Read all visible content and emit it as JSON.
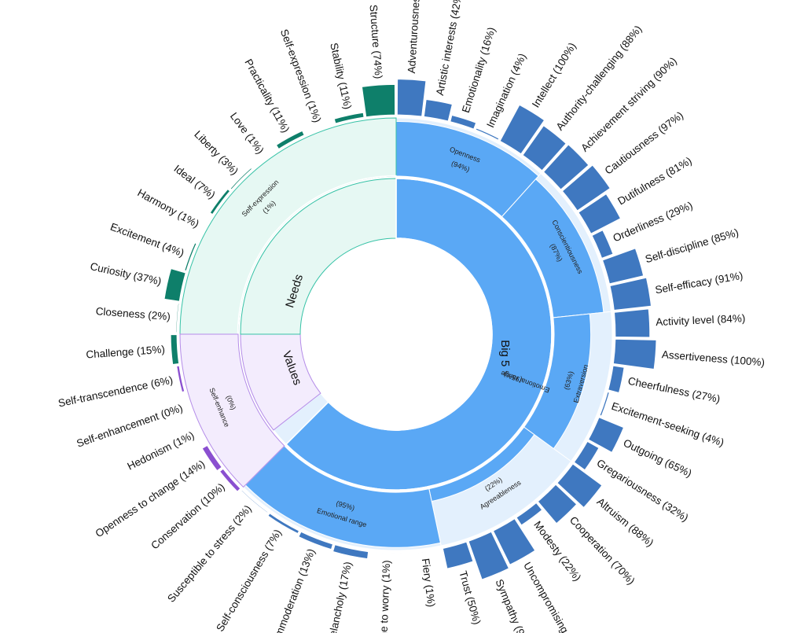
{
  "chart_data": {
    "type": "sunburst",
    "title": "",
    "categories": [
      {
        "name": "Big 5",
        "percent": null,
        "color": "#5aa8f5"
      },
      {
        "name": "Needs",
        "percent": null,
        "color": "#e6f8f3"
      },
      {
        "name": "Values",
        "percent": null,
        "color": "#f3ecfd"
      }
    ],
    "middle_ring": [
      {
        "name": "Openness",
        "percent": 94,
        "group": "Big 5"
      },
      {
        "name": "Conscientiousness",
        "percent": 87,
        "group": "Big 5"
      },
      {
        "name": "Extraversion",
        "percent": 63,
        "group": "Big 5"
      },
      {
        "name": "Agreeableness",
        "percent": 22,
        "group": "Big 5"
      },
      {
        "name": "Emotional range",
        "percent": 95,
        "group": "Big 5"
      },
      {
        "name": "Self-expression",
        "percent": 1,
        "group": "Needs"
      },
      {
        "name": "Self-enhance",
        "percent": 0,
        "group": "Values"
      }
    ],
    "inner_big5": {
      "name": "Emotional range",
      "percent": 95
    },
    "facets": [
      {
        "name": "Adventurousness",
        "percent": 87,
        "parent": "Openness"
      },
      {
        "name": "Artistic interests",
        "percent": 42,
        "parent": "Openness"
      },
      {
        "name": "Emotionality",
        "percent": 16,
        "parent": "Openness"
      },
      {
        "name": "Imagination",
        "percent": 4,
        "parent": "Openness"
      },
      {
        "name": "Intellect",
        "percent": 100,
        "parent": "Openness"
      },
      {
        "name": "Authority-challenging",
        "percent": 88,
        "parent": "Openness"
      },
      {
        "name": "Achievement striving",
        "percent": 90,
        "parent": "Conscientiousness"
      },
      {
        "name": "Cautiousness",
        "percent": 97,
        "parent": "Conscientiousness"
      },
      {
        "name": "Dutifulness",
        "percent": 81,
        "parent": "Conscientiousness"
      },
      {
        "name": "Orderliness",
        "percent": 29,
        "parent": "Conscientiousness"
      },
      {
        "name": "Self-discipline",
        "percent": 85,
        "parent": "Conscientiousness"
      },
      {
        "name": "Self-efficacy",
        "percent": 91,
        "parent": "Conscientiousness"
      },
      {
        "name": "Activity level",
        "percent": 84,
        "parent": "Extraversion"
      },
      {
        "name": "Assertiveness",
        "percent": 100,
        "parent": "Extraversion"
      },
      {
        "name": "Cheerfulness",
        "percent": 27,
        "parent": "Extraversion"
      },
      {
        "name": "Excitement-seeking",
        "percent": 4,
        "parent": "Extraversion"
      },
      {
        "name": "Outgoing",
        "percent": 65,
        "parent": "Extraversion"
      },
      {
        "name": "Gregariousness",
        "percent": 32,
        "parent": "Extraversion"
      },
      {
        "name": "Altruism",
        "percent": 88,
        "parent": "Agreeableness"
      },
      {
        "name": "Cooperation",
        "percent": 70,
        "parent": "Agreeableness"
      },
      {
        "name": "Modesty",
        "percent": 22,
        "parent": "Agreeableness"
      },
      {
        "name": "Uncompromising",
        "percent": 92,
        "parent": "Agreeableness"
      },
      {
        "name": "Sympathy",
        "percent": 99,
        "parent": "Agreeableness"
      },
      {
        "name": "Trust",
        "percent": 50,
        "parent": "Agreeableness"
      },
      {
        "name": "Fiery",
        "percent": 1,
        "parent": "Emotional range"
      },
      {
        "name": "Prone to worry",
        "percent": 1,
        "parent": "Emotional range"
      },
      {
        "name": "Melancholy",
        "percent": 17,
        "parent": "Emotional range"
      },
      {
        "name": "Immoderation",
        "percent": 13,
        "parent": "Emotional range"
      },
      {
        "name": "Self-consciousness",
        "percent": 7,
        "parent": "Emotional range"
      },
      {
        "name": "Susceptible to stress",
        "percent": 2,
        "parent": "Emotional range"
      },
      {
        "name": "Conservation",
        "percent": 10,
        "parent": "Values"
      },
      {
        "name": "Openness to change",
        "percent": 14,
        "parent": "Values"
      },
      {
        "name": "Hedonism",
        "percent": 1,
        "parent": "Values"
      },
      {
        "name": "Self-enhancement",
        "percent": 0,
        "parent": "Values"
      },
      {
        "name": "Self-transcendence",
        "percent": 6,
        "parent": "Values"
      },
      {
        "name": "Challenge",
        "percent": 15,
        "parent": "Needs"
      },
      {
        "name": "Closeness",
        "percent": 2,
        "parent": "Needs"
      },
      {
        "name": "Curiosity",
        "percent": 37,
        "parent": "Needs"
      },
      {
        "name": "Excitement",
        "percent": 4,
        "parent": "Needs"
      },
      {
        "name": "Harmony",
        "percent": 1,
        "parent": "Needs"
      },
      {
        "name": "Ideal",
        "percent": 7,
        "parent": "Needs"
      },
      {
        "name": "Liberty",
        "percent": 3,
        "parent": "Needs"
      },
      {
        "name": "Love",
        "percent": 1,
        "parent": "Needs"
      },
      {
        "name": "Practicality",
        "percent": 11,
        "parent": "Needs"
      },
      {
        "name": "Self-expression",
        "percent": 1,
        "parent": "Needs"
      },
      {
        "name": "Stability",
        "percent": 11,
        "parent": "Needs"
      },
      {
        "name": "Structure",
        "percent": 74,
        "parent": "Needs"
      }
    ],
    "colors": {
      "big5_bar": "#3f78c0",
      "big5_mid": "#5aa8f5",
      "big5_mid_empty": "#e3f0fd",
      "needs_bar": "#0e7f6a",
      "needs_mid": "#e6f8f3",
      "needs_border": "#36c2a6",
      "values_bar": "#8a4fd0",
      "values_mid": "#f3ecfd",
      "values_border": "#b48ce8"
    }
  }
}
